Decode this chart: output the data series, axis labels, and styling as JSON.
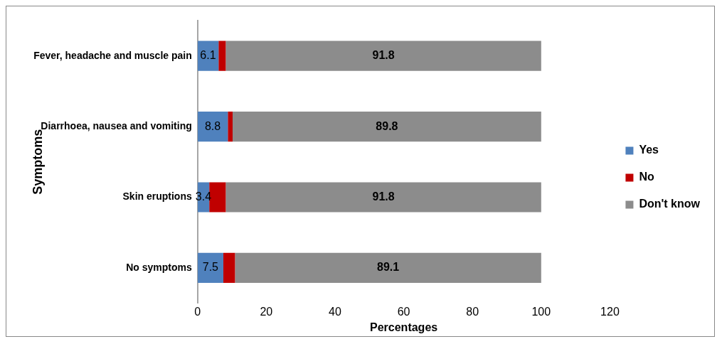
{
  "chart_data": {
    "type": "bar",
    "orientation": "horizontal",
    "stacked": true,
    "xlabel": "Percentages",
    "ylabel": "Symptoms",
    "categories": [
      "Fever, headache and muscle pain",
      "Diarrhoea, nausea and vomiting",
      "Skin eruptions",
      "No symptoms"
    ],
    "series": [
      {
        "name": "Yes",
        "color": "#4f81bd",
        "values": [
          6.1,
          8.8,
          3.4,
          7.5
        ],
        "value_labels": [
          "6.1",
          "8.8",
          "3.4",
          "7.5"
        ]
      },
      {
        "name": "No",
        "color": "#c00000",
        "values": [
          2.1,
          1.4,
          4.8,
          3.4
        ],
        "value_labels": [
          null,
          null,
          null,
          null
        ]
      },
      {
        "name": "Don't know",
        "color": "#8c8c8c",
        "values": [
          91.8,
          89.8,
          91.8,
          89.1
        ],
        "value_labels": [
          "91.8",
          "89.8",
          "91.8",
          "89.1"
        ]
      }
    ],
    "xlim": [
      0,
      120
    ],
    "xticks": [
      0,
      20,
      40,
      60,
      80,
      100,
      120
    ],
    "grid": false,
    "legend": "right"
  }
}
